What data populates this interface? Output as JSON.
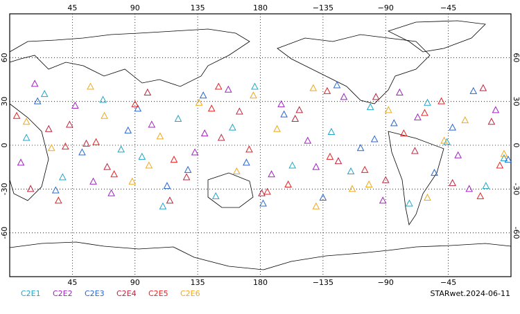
{
  "chart_data": {
    "type": "scatter",
    "xlim": [
      0,
      360
    ],
    "ylim": [
      -90,
      90
    ],
    "xticks": [
      45,
      90,
      135,
      180,
      {
        "value": 225,
        "label": "−135"
      },
      {
        "value": 270,
        "label": "−90"
      },
      {
        "value": 315,
        "label": "−45"
      }
    ],
    "yticks": [
      -60,
      -30,
      0,
      30,
      60
    ],
    "grid": true,
    "footer": "STARwet.2024-06-11",
    "series": [
      {
        "name": "C2E1",
        "color": "#1fa5c8",
        "x": [
          12,
          38,
          67,
          95,
          121,
          148,
          176,
          203,
          231,
          259,
          287,
          314,
          342,
          25,
          80,
          160,
          245,
          300,
          355,
          110
        ],
        "values": [
          5,
          -22,
          31,
          -8,
          18,
          -35,
          40,
          -14,
          9,
          26,
          -40,
          2,
          -28,
          35,
          -3,
          12,
          -18,
          29,
          -9,
          -42
        ]
      },
      {
        "name": "C2E2",
        "color": "#a020c0",
        "x": [
          8,
          47,
          73,
          102,
          133,
          157,
          188,
          214,
          240,
          268,
          293,
          322,
          349,
          60,
          140,
          220,
          280,
          330,
          18,
          195
        ],
        "values": [
          -12,
          27,
          -33,
          14,
          -5,
          38,
          -20,
          3,
          33,
          -38,
          19,
          -7,
          24,
          -25,
          8,
          -15,
          36,
          -30,
          42,
          28
        ]
      },
      {
        "name": "C2E3",
        "color": "#2566d0",
        "x": [
          20,
          52,
          85,
          113,
          139,
          170,
          197,
          225,
          252,
          276,
          305,
          333,
          358,
          33,
          92,
          182,
          262,
          318,
          128,
          235
        ],
        "values": [
          30,
          -5,
          10,
          -28,
          34,
          -12,
          21,
          -36,
          -2,
          15,
          -19,
          37,
          -10,
          -31,
          25,
          -40,
          4,
          12,
          -17,
          41
        ]
      },
      {
        "name": "C2E4",
        "color": "#c0203c",
        "x": [
          15,
          43,
          70,
          99,
          127,
          152,
          181,
          208,
          236,
          263,
          291,
          318,
          346,
          55,
          115,
          205,
          270,
          340,
          165,
          28
        ],
        "values": [
          -30,
          14,
          -15,
          36,
          -22,
          5,
          -33,
          24,
          -11,
          33,
          -4,
          -26,
          16,
          1,
          -38,
          18,
          -24,
          39,
          23,
          11
        ]
      },
      {
        "name": "C2E5",
        "color": "#e82020",
        "x": [
          5,
          35,
          62,
          90,
          118,
          145,
          172,
          200,
          228,
          255,
          283,
          310,
          338,
          75,
          150,
          230,
          298,
          352,
          40,
          185
        ],
        "values": [
          20,
          -38,
          2,
          28,
          -10,
          25,
          -3,
          -27,
          37,
          -17,
          8,
          30,
          -35,
          -20,
          40,
          -8,
          22,
          -14,
          -1,
          -32
        ]
      },
      {
        "name": "C2E6",
        "color": "#f0a818",
        "x": [
          30,
          58,
          88,
          108,
          136,
          163,
          192,
          218,
          246,
          272,
          300,
          327,
          355,
          12,
          100,
          175,
          258,
          312,
          220,
          68
        ],
        "values": [
          -2,
          40,
          -25,
          6,
          29,
          -18,
          11,
          39,
          -30,
          24,
          -36,
          17,
          -6,
          16,
          -14,
          34,
          -27,
          3,
          -42,
          20
        ]
      }
    ]
  }
}
